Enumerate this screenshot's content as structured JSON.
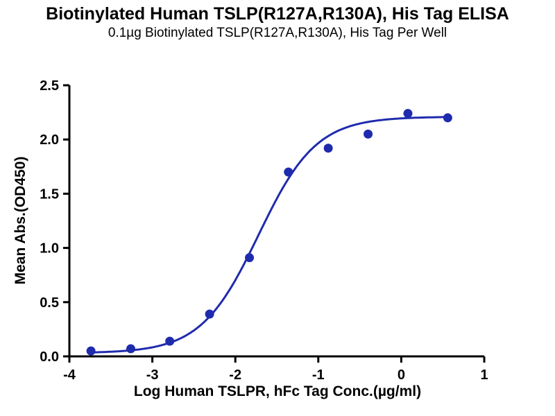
{
  "header": {
    "title": "Biotinylated Human TSLP(R127A,R130A), His Tag ELISA",
    "subtitle": "0.1µg Biotinylated TSLP(R127A,R130A), His Tag Per Well"
  },
  "colors": {
    "curve": "#1f2bad",
    "axis": "#000000",
    "text": "#000000"
  },
  "chart_data": {
    "type": "scatter",
    "title": "Biotinylated Human TSLP(R127A,R130A), His Tag ELISA",
    "subtitle": "0.1µg Biotinylated TSLP(R127A,R130A), His Tag Per Well",
    "xlabel": "Log Human TSLPR, hFc Tag Conc.(µg/ml)",
    "ylabel": "Mean Abs.(OD450)",
    "xlim": [
      -4,
      1
    ],
    "ylim": [
      0,
      2.5
    ],
    "x_ticks": [
      -4,
      -3,
      -2,
      -1,
      0,
      1
    ],
    "x_tick_labels": [
      "-4",
      "-3",
      "-2",
      "-1",
      "0",
      "1"
    ],
    "y_ticks": [
      0,
      0.5,
      1,
      1.5,
      2,
      2.5
    ],
    "y_tick_labels": [
      "0.0",
      "0.5",
      "1.0",
      "1.5",
      "2.0",
      "2.5"
    ],
    "grid": false,
    "legend": "none",
    "series": [
      {
        "name": "Mean Abs.(OD450)",
        "color": "#1f2bad",
        "marker": "circle",
        "x": [
          -3.74,
          -3.26,
          -2.79,
          -2.31,
          -1.83,
          -1.36,
          -0.88,
          -0.4,
          0.08,
          0.56
        ],
        "y": [
          0.05,
          0.07,
          0.14,
          0.39,
          0.91,
          1.7,
          1.92,
          2.05,
          2.24,
          2.2
        ]
      }
    ],
    "fit_curve": {
      "model": "4PL",
      "bottom": 0.03,
      "top": 2.21,
      "log_ec50": -1.72,
      "hill": 1.25,
      "x_start": -3.74,
      "x_end": 0.56
    }
  }
}
